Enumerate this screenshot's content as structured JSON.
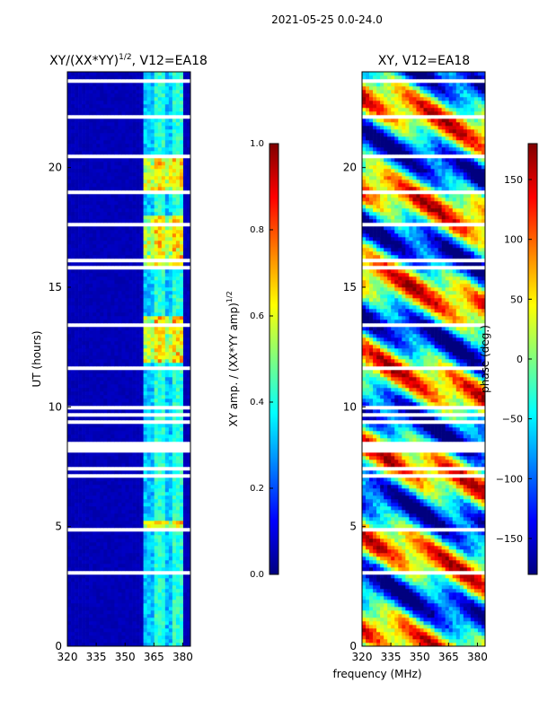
{
  "figure_title": "2021-05-25 0.0-24.0",
  "shared_xlabel": "frequency (MHz)",
  "shared_ylabel": "UT (hours)",
  "chart_data": [
    {
      "type": "heatmap",
      "title": "XY/(XX*YY)",
      "title_superscript": "1/2",
      "title_suffix": ", V12=EA18",
      "xlabel": "frequency (MHz)",
      "ylabel": "UT (hours)",
      "xlim": [
        320,
        384
      ],
      "ylim": [
        0,
        24
      ],
      "xticks": [
        320,
        335,
        350,
        365,
        380
      ],
      "yticks": [
        0,
        5,
        10,
        15,
        20
      ],
      "colorbar": {
        "label": "XY amp. / (XX*YY amp)",
        "label_superscript": "1/2",
        "range": [
          0.0,
          1.0
        ],
        "ticks": [
          "0.0",
          "0.2",
          "0.4",
          "0.6",
          "0.8",
          "1.0"
        ],
        "colormap": "jet"
      },
      "high_value_band_mhz": [
        360,
        381
      ],
      "bright_hour_ranges": [
        [
          4.8,
          5.3
        ],
        [
          11.8,
          13.8
        ],
        [
          15.8,
          18.0
        ],
        [
          18.9,
          20.4
        ]
      ]
    },
    {
      "type": "heatmap",
      "title": "XY, V12=EA18",
      "xlabel": "frequency (MHz)",
      "ylabel": "UT (hours)",
      "xlim": [
        320,
        384
      ],
      "ylim": [
        0,
        24
      ],
      "xticks": [
        320,
        335,
        350,
        365,
        380
      ],
      "yticks": [
        0,
        5,
        10,
        15,
        20
      ],
      "colorbar": {
        "label": "phase (deg.)",
        "range": [
          -180,
          180
        ],
        "ticks": [
          "150",
          "100",
          "50",
          "0",
          "−50",
          "−100",
          "−150"
        ],
        "colormap": "jet"
      }
    }
  ],
  "colors": {
    "jet": [
      "#00007f",
      "#0000ff",
      "#007fff",
      "#00ffff",
      "#7fff7f",
      "#ffff00",
      "#ff7f00",
      "#ff0000",
      "#7f0000"
    ],
    "gap": "#ffffff",
    "axis": "#000000"
  }
}
